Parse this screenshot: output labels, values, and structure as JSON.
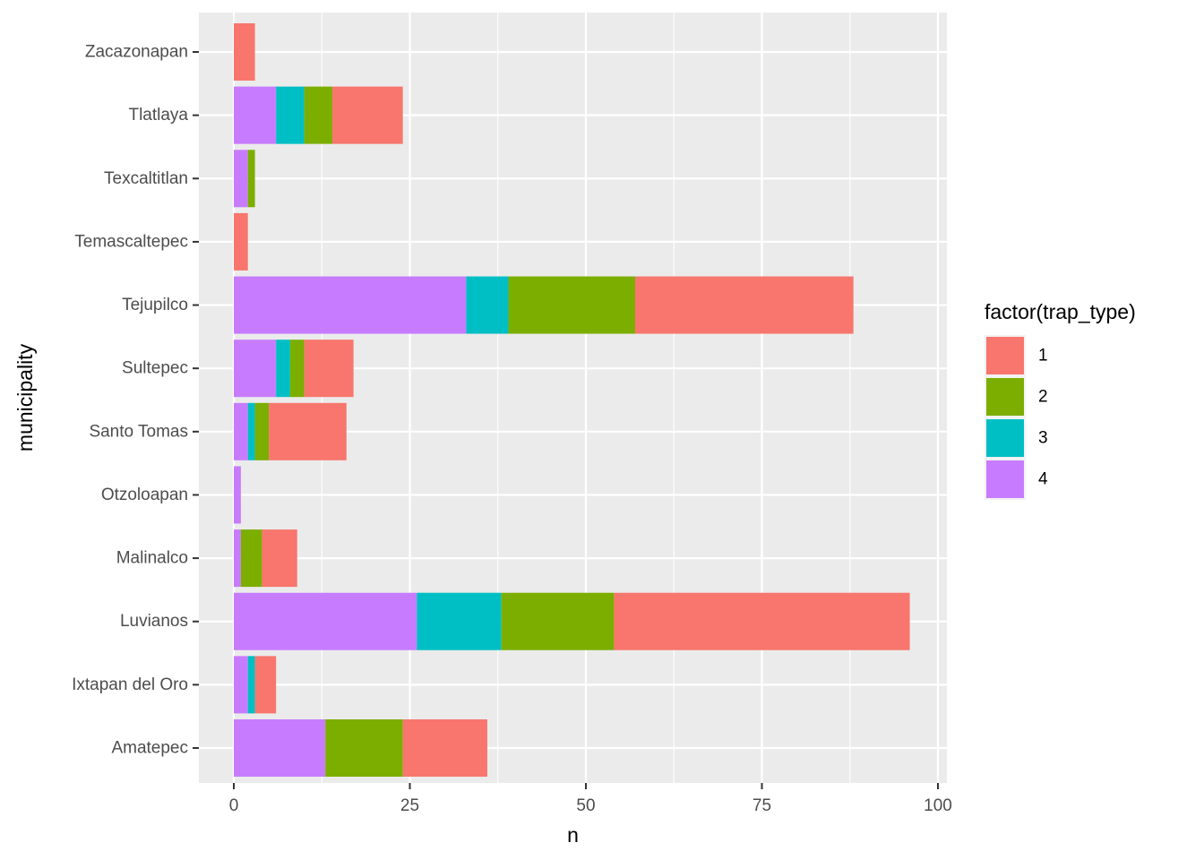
{
  "chart_data": {
    "type": "bar",
    "orientation": "horizontal",
    "stacked": true,
    "xlabel": "n",
    "ylabel": "municipality",
    "xlim": [
      0,
      100
    ],
    "x_ticks": [
      0,
      25,
      50,
      75,
      100
    ],
    "grid": true,
    "legend_position": "right",
    "legend_title": "factor(trap_type)",
    "categories": [
      "Amatepec",
      "Ixtapan del Oro",
      "Luvianos",
      "Malinalco",
      "Otzoloapan",
      "Santo Tomas",
      "Sultepec",
      "Tejupilco",
      "Temascaltepec",
      "Texcaltitlan",
      "Tlatlaya",
      "Zacazonapan"
    ],
    "series": [
      {
        "name": "1",
        "color": "#F8766D",
        "values": [
          12,
          3,
          42,
          5,
          0,
          11,
          7,
          31,
          2,
          0,
          10,
          3
        ]
      },
      {
        "name": "2",
        "color": "#7CAE00",
        "values": [
          11,
          0,
          16,
          3,
          0,
          2,
          2,
          18,
          0,
          1,
          4,
          0
        ]
      },
      {
        "name": "3",
        "color": "#00BFC4",
        "values": [
          0,
          1,
          12,
          0,
          0,
          1,
          2,
          6,
          0,
          0,
          4,
          0
        ]
      },
      {
        "name": "4",
        "color": "#C77CFF",
        "values": [
          13,
          2,
          26,
          1,
          1,
          2,
          6,
          33,
          0,
          2,
          6,
          0
        ]
      }
    ],
    "stack_order_from_zero": [
      "4",
      "3",
      "2",
      "1"
    ]
  }
}
